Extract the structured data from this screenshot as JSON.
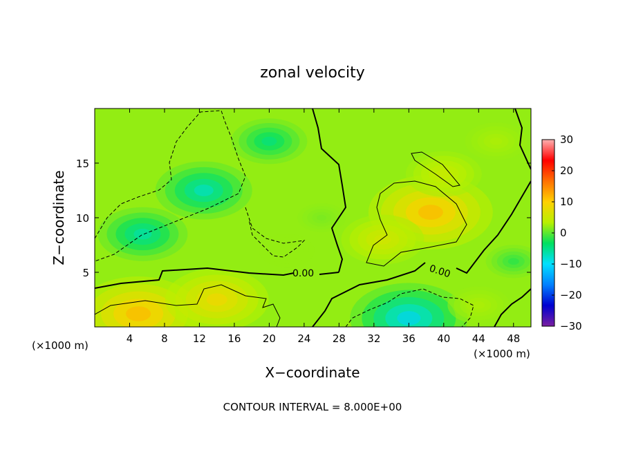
{
  "chart_data": {
    "type": "heatmap",
    "title": "zonal velocity",
    "xlabel": "X−coordinate",
    "ylabel": "Z−coordinate",
    "x_unit": "(×1000 m)",
    "z_unit": "(×1000 m)",
    "x_ticks": [
      4,
      8,
      12,
      16,
      20,
      24,
      28,
      32,
      36,
      40,
      44,
      48
    ],
    "x_tick_labels": [
      "4",
      "8",
      "12",
      "16",
      "20",
      "24",
      "28",
      "32",
      "36",
      "40",
      "44",
      "48"
    ],
    "y_ticks": [
      5,
      10,
      15
    ],
    "y_tick_labels": [
      "5",
      "10",
      "15"
    ],
    "xlim": [
      0,
      50
    ],
    "ylim": [
      0,
      20
    ],
    "colorbar": {
      "range": [
        -30,
        30
      ],
      "ticks": [
        30,
        20,
        10,
        0,
        -10,
        -20,
        -30
      ],
      "tick_labels": [
        "30",
        "20",
        "10",
        "0",
        "−10",
        "−20",
        "−30"
      ],
      "stops": [
        "#7a1fa0",
        "#0000d0",
        "#0080ff",
        "#00e0ff",
        "#00e060",
        "#b8f000",
        "#ffd000",
        "#ff7000",
        "#ff0000",
        "#ffb0b0"
      ]
    },
    "contour_labels": [
      "0.00",
      "0.00"
    ],
    "footer": "CONTOUR INTERVAL = 8.000E+00",
    "field_centers": [
      {
        "x": 12.5,
        "z": 12.5,
        "value": -8
      },
      {
        "x": 5.5,
        "z": 8.5,
        "value": -7
      },
      {
        "x": 20,
        "z": 17,
        "value": -5
      },
      {
        "x": 38.5,
        "z": 10.5,
        "value": 12
      },
      {
        "x": 40,
        "z": 14,
        "value": 5
      },
      {
        "x": 33,
        "z": 8,
        "value": 6
      },
      {
        "x": 5,
        "z": 1.2,
        "value": 12
      },
      {
        "x": 14,
        "z": 2.5,
        "value": 9
      },
      {
        "x": 36,
        "z": 0.8,
        "value": -11
      },
      {
        "x": 44,
        "z": 2,
        "value": 3
      },
      {
        "x": 26,
        "z": 10,
        "value": 1
      },
      {
        "x": 46,
        "z": 17,
        "value": 3
      },
      {
        "x": 48,
        "z": 6,
        "value": -2
      },
      {
        "x": 22,
        "z": 7,
        "value": 2
      }
    ]
  }
}
